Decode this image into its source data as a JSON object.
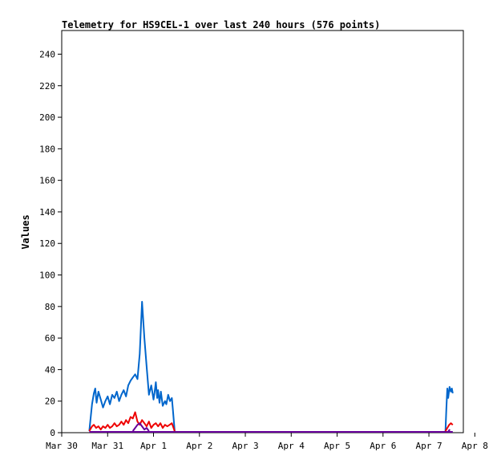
{
  "chart_data": {
    "type": "line",
    "title": "Telemetry for HS9CEL-1 over last 240 hours (576 points)",
    "xlabel": "",
    "ylabel": "Values",
    "ylim": [
      0,
      255
    ],
    "y_ticks": [
      0,
      20,
      40,
      60,
      80,
      100,
      120,
      140,
      160,
      180,
      200,
      220,
      240
    ],
    "x_tick_labels": [
      "Mar 30",
      "Mar 31",
      "Apr 1",
      "Apr 2",
      "Apr 3",
      "Apr 4",
      "Apr 5",
      "Apr 6",
      "Apr 7",
      "Apr 8"
    ],
    "x_range_days": [
      0,
      8.75
    ],
    "grid": false,
    "legend": "none",
    "series": [
      {
        "color": "#0066cc",
        "x": [
          0.6,
          0.66,
          0.7,
          0.73,
          0.76,
          0.8,
          0.85,
          0.9,
          0.95,
          1.0,
          1.05,
          1.1,
          1.15,
          1.2,
          1.25,
          1.3,
          1.35,
          1.4,
          1.45,
          1.5,
          1.55,
          1.6,
          1.65,
          1.7,
          1.75,
          1.8,
          1.85,
          1.9,
          1.95,
          2.0,
          2.02,
          2.05,
          2.08,
          2.1,
          2.13,
          2.16,
          2.2,
          2.25,
          2.28,
          2.32,
          2.36,
          2.4,
          2.42,
          2.46,
          8.36,
          8.38,
          8.4,
          8.42,
          8.45,
          8.48,
          8.5,
          8.52
        ],
        "values": [
          1,
          18,
          25,
          28,
          19,
          26,
          21,
          16,
          20,
          23,
          18,
          24,
          22,
          26,
          20,
          24,
          27,
          23,
          30,
          33,
          35,
          37,
          34,
          50,
          83,
          60,
          42,
          24,
          30,
          21,
          25,
          32,
          22,
          27,
          19,
          26,
          17,
          20,
          18,
          24,
          20,
          22,
          15,
          1,
          1,
          15,
          28,
          22,
          29,
          26,
          28,
          25
        ]
      },
      {
        "color": "#ee0000",
        "x": [
          0.6,
          0.66,
          0.7,
          0.75,
          0.8,
          0.85,
          0.9,
          0.95,
          1.0,
          1.05,
          1.1,
          1.15,
          1.2,
          1.25,
          1.3,
          1.35,
          1.4,
          1.45,
          1.5,
          1.55,
          1.6,
          1.65,
          1.7,
          1.75,
          1.8,
          1.85,
          1.9,
          1.95,
          2.0,
          2.05,
          2.1,
          2.15,
          2.2,
          2.25,
          2.3,
          2.35,
          2.4,
          2.46,
          8.36,
          8.4,
          8.44,
          8.48,
          8.52
        ],
        "values": [
          1,
          4,
          5,
          3,
          4,
          2,
          4,
          3,
          5,
          3,
          4,
          6,
          4,
          5,
          7,
          5,
          8,
          6,
          10,
          9,
          13,
          7,
          5,
          8,
          6,
          4,
          7,
          3,
          5,
          6,
          4,
          6,
          3,
          5,
          4,
          5,
          6,
          1,
          1,
          3,
          5,
          6,
          5
        ]
      },
      {
        "color": "#660099",
        "x": [
          1.55,
          1.6,
          1.65,
          1.7,
          1.75,
          1.8,
          1.85,
          1.9,
          8.42,
          8.46
        ],
        "values": [
          1,
          3,
          5,
          6,
          4,
          2,
          3,
          1,
          1,
          2
        ]
      }
    ]
  }
}
